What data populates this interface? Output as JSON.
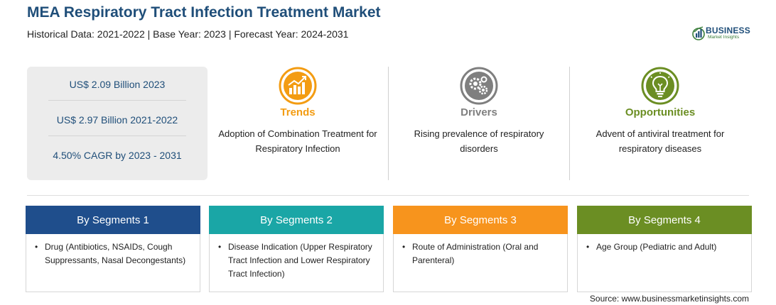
{
  "header": {
    "title": "MEA Respiratory Tract Infection Treatment Market",
    "subtitle": "Historical Data: 2021-2022 | Base Year: 2023 | Forecast Year: 2024-2031"
  },
  "logo": {
    "main": "BUSINESS",
    "sub": "Market Insights",
    "colors": {
      "primary": "#1f4e79",
      "accent": "#3a7d3a"
    }
  },
  "stats": [
    "US$ 2.09 Billion 2023",
    "US$ 2.97 Billion 2021-2022",
    "4.50% CAGR by 2023 - 2031"
  ],
  "highlights": [
    {
      "title": "Trends",
      "icon": "growth-chart-icon",
      "color": "#f39c12",
      "text": "Adoption of Combination Treatment for Respiratory Infection"
    },
    {
      "title": "Drivers",
      "icon": "gears-icon",
      "color": "#7f7f7f",
      "text": "Rising prevalence of respiratory disorders"
    },
    {
      "title": "Opportunities",
      "icon": "lightbulb-icon",
      "color": "#6b8e23",
      "text": "Advent of antiviral treatment for respiratory diseases"
    }
  ],
  "segments": [
    {
      "title": "By Segments 1",
      "color": "#1f4e8c",
      "item": "Drug (Antibiotics, NSAIDs, Cough Suppressants, Nasal Decongestants)"
    },
    {
      "title": "By Segments 2",
      "color": "#1aa6a6",
      "item": "Disease Indication (Upper Respiratory Tract Infection and Lower Respiratory Tract Infection)"
    },
    {
      "title": "By Segments 3",
      "color": "#f7941d",
      "item": "Route of Administration (Oral and Parenteral)"
    },
    {
      "title": "By Segments 4",
      "color": "#6b8e23",
      "item": "Age Group (Pediatric and Adult)"
    }
  ],
  "bullet": "•",
  "source": "Source: www.businessmarketinsights.com"
}
